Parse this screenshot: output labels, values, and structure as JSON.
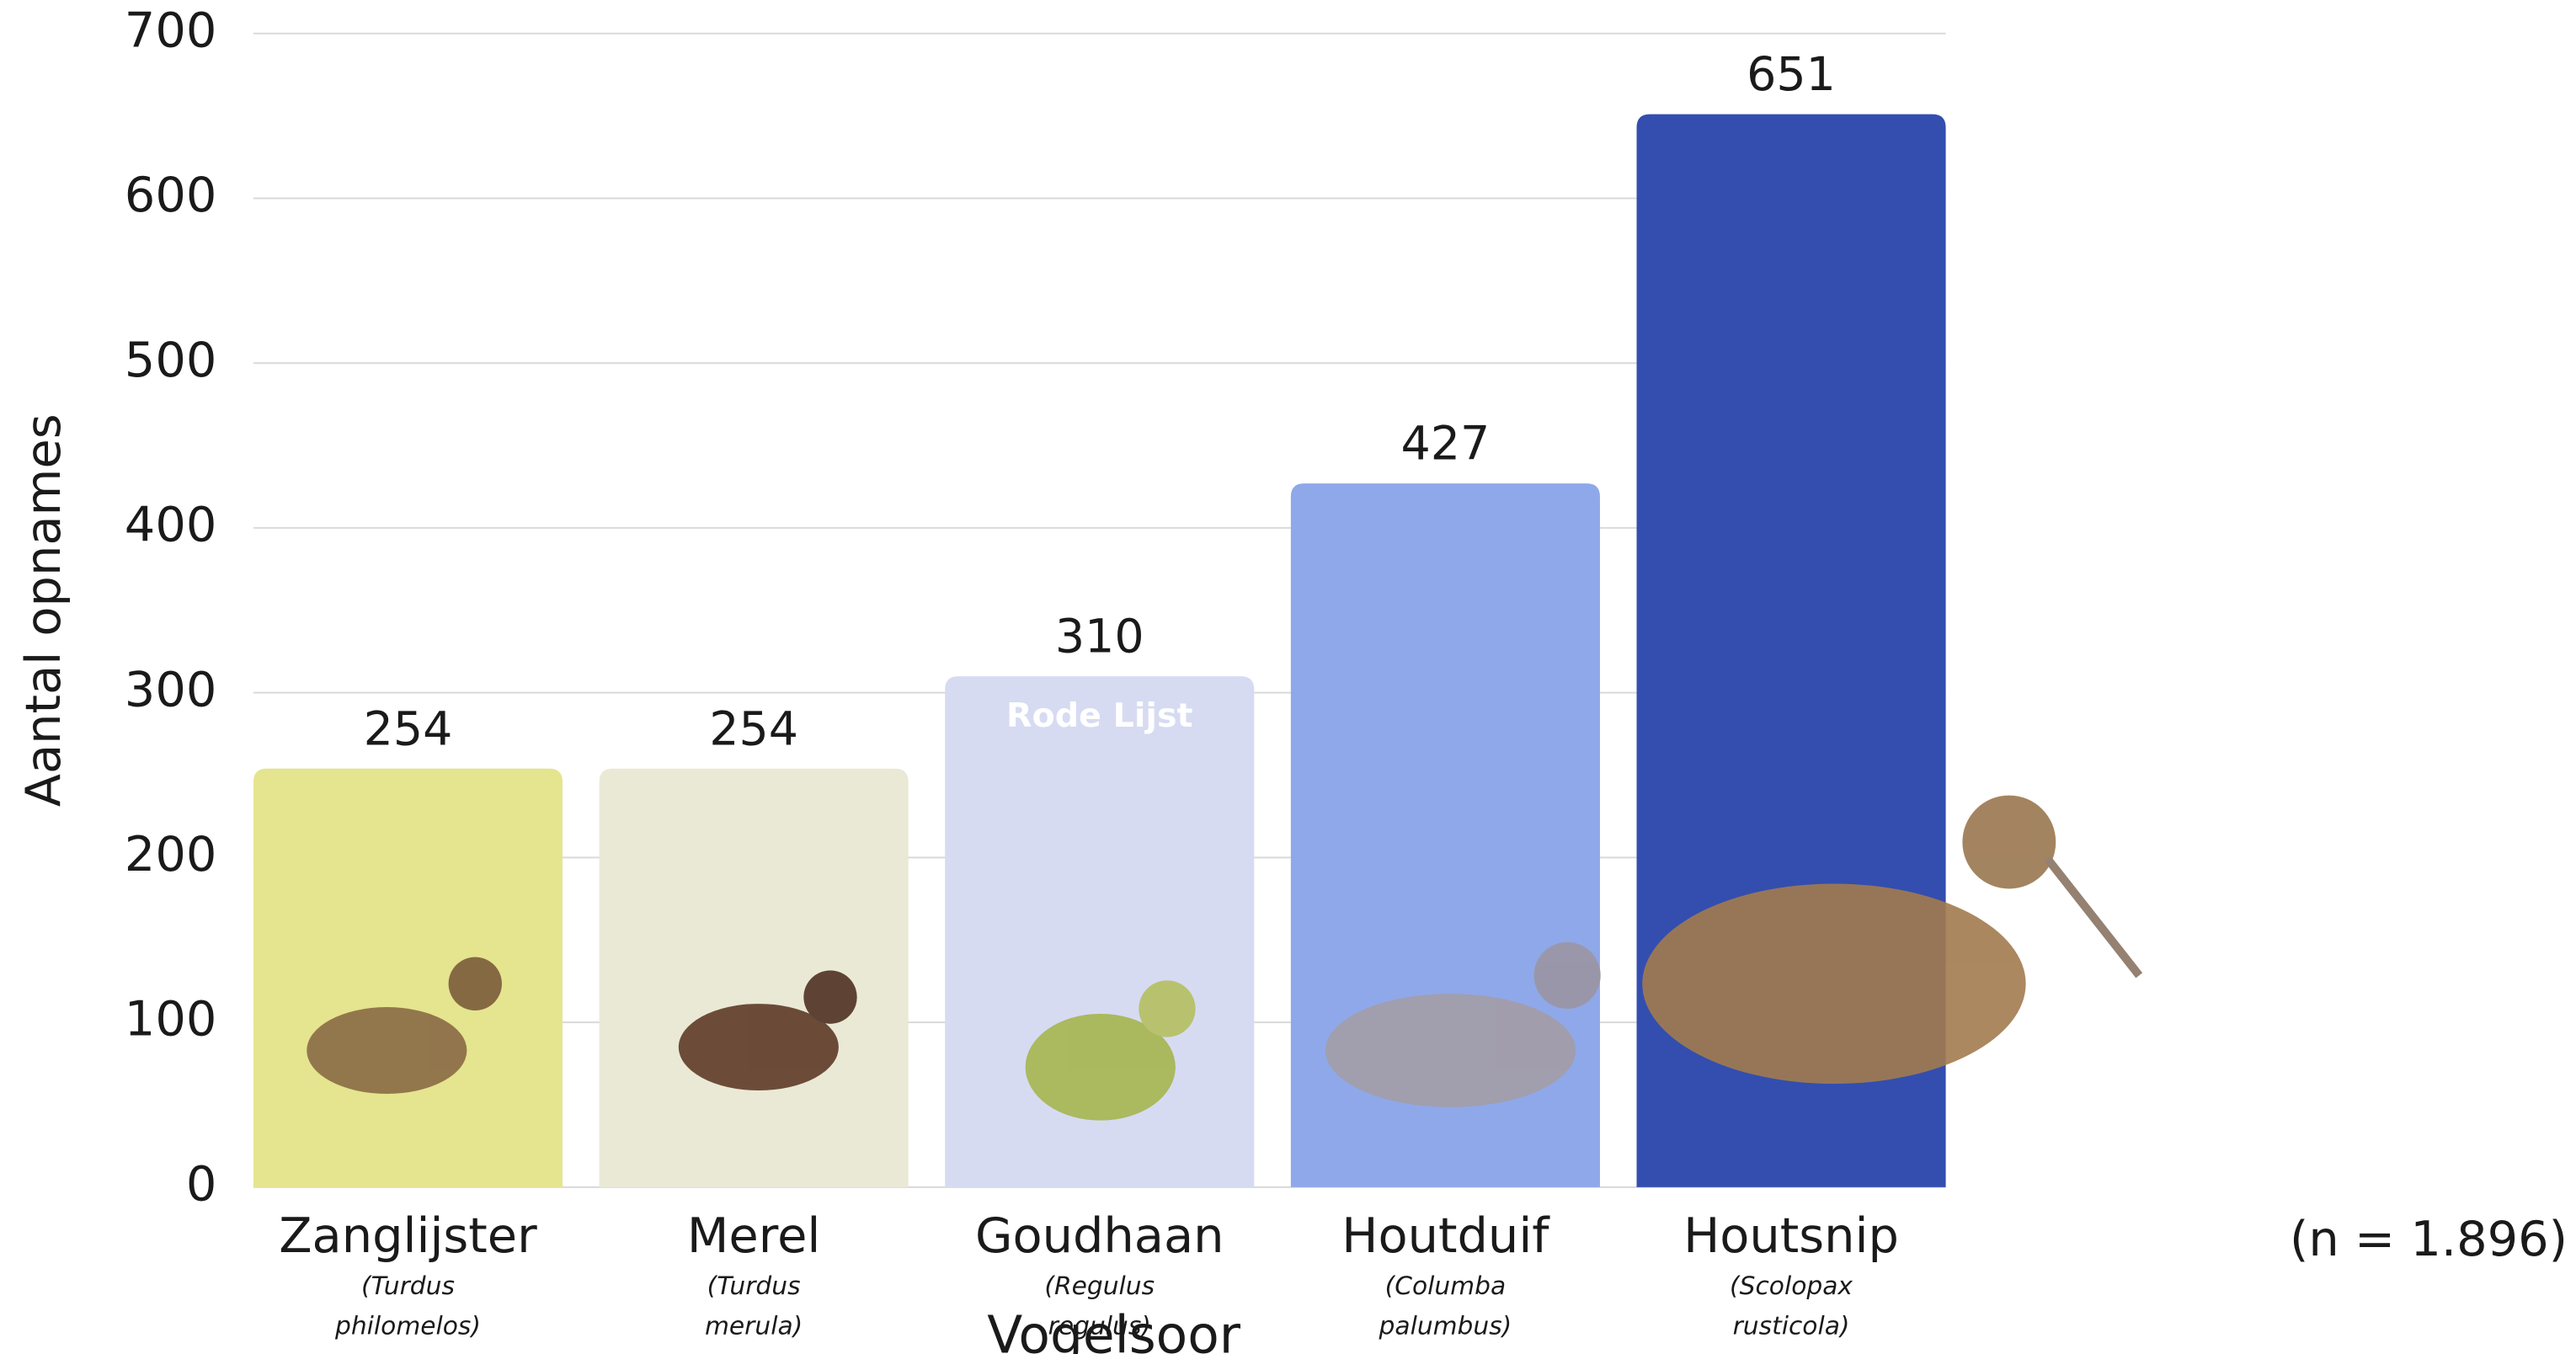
{
  "chart_data": {
    "type": "bar",
    "y_label": "Aantal opnames",
    "x_label": "Vogelsoor",
    "categories": [
      "Zanglijster",
      "Merel",
      "Goudhaan",
      "Houtduif",
      "Houtsnip"
    ],
    "scientific_names": [
      [
        "(Turdus",
        "philomelos)"
      ],
      [
        "(Turdus",
        "merula)"
      ],
      [
        "(Regulus",
        "regulus)"
      ],
      [
        "(Columba",
        "palumbus)"
      ],
      [
        "(Scolopax",
        "rusticola)"
      ]
    ],
    "values": [
      254,
      254,
      310,
      427,
      651
    ],
    "colors": [
      "#e5e48f",
      "#eae9d6",
      "#d6dbf2",
      "#8fa8e9",
      "#334eae"
    ],
    "annotation": "Rode Lijst",
    "note": "(n = 1.896)",
    "ylim": [
      0,
      700
    ],
    "yticks": [
      0,
      100,
      200,
      300,
      400,
      500,
      600,
      700
    ],
    "grid": true
  }
}
